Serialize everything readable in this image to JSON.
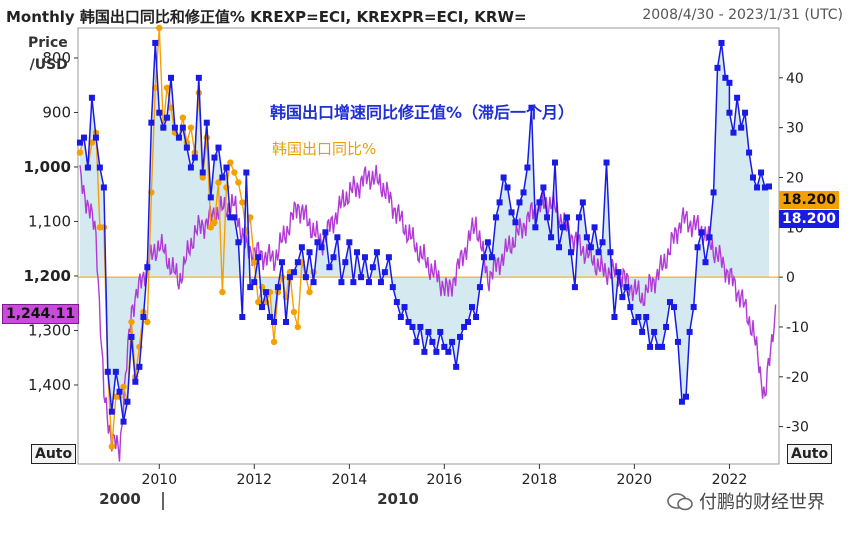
{
  "header": {
    "title": "Monthly 韩国出口同比和修正值% KREXP=ECI, KREXPR=ECI, KRW=",
    "date_range": "2008/4/30 - 2023/1/31 (UTC)"
  },
  "left_axis_label": [
    "Price",
    "/USD"
  ],
  "buttons": {
    "auto_left": "Auto",
    "auto_right": "Auto"
  },
  "value_tags": {
    "krw": "1,244.11",
    "krexpr": "18.200",
    "krexp": "18.200"
  },
  "legend": {
    "krexp": "韩国出口增速同比修正值%（滞后一个月）",
    "krexpr": "韩国出口同比%"
  },
  "watermark": "付鹏的财经世界",
  "colors": {
    "krexp": "#1a1ae6",
    "krexpr": "#f5a000",
    "krw": "#b13ad6",
    "fill": "#cfe8ee",
    "zero_line": "#f5a000"
  },
  "chart_data": {
    "type": "line",
    "title": "Monthly 韩国出口同比和修正值% KREXP=ECI, KREXPR=ECI, KRW=",
    "x_tick_labels": [
      "2010",
      "2012",
      "2014",
      "2016",
      "2018",
      "2020",
      "2022"
    ],
    "x_secondary_labels": [
      "2000",
      "2010"
    ],
    "x_range": [
      "2008-04-30",
      "2023-01-31"
    ],
    "y_left": {
      "label": "Price /USD",
      "inverted": true,
      "ticks": [
        800,
        900,
        1000,
        1100,
        1200,
        1300,
        1400
      ],
      "tick_labels": [
        "800",
        "900",
        "1,000",
        "1,100",
        "1,200",
        "1,300",
        "1,400"
      ],
      "range": [
        745,
        1545
      ]
    },
    "y_right": {
      "ticks": [
        40,
        30,
        20,
        10,
        0,
        -10,
        -20,
        -30
      ],
      "tick_labels": [
        "40",
        "30",
        "20",
        "10",
        "0",
        "-10",
        "-20",
        "-30"
      ],
      "range": [
        -37.5,
        50
      ]
    },
    "series": [
      {
        "name": "韩国出口增速同比修正值%（滞后一个月）",
        "axis": "right",
        "style": "line+square-markers+fill",
        "points": [
          [
            "2008-05",
            27
          ],
          [
            "2008-06",
            28
          ],
          [
            "2008-07",
            22
          ],
          [
            "2008-08",
            36
          ],
          [
            "2008-09",
            28
          ],
          [
            "2008-10",
            22
          ],
          [
            "2008-11",
            18
          ],
          [
            "2008-12",
            -19
          ],
          [
            "2009-01",
            -27
          ],
          [
            "2009-02",
            -19
          ],
          [
            "2009-03",
            -23
          ],
          [
            "2009-04",
            -29
          ],
          [
            "2009-05",
            -25
          ],
          [
            "2009-06",
            -12
          ],
          [
            "2009-07",
            -21
          ],
          [
            "2009-08",
            -18
          ],
          [
            "2009-09",
            -8
          ],
          [
            "2009-10",
            2
          ],
          [
            "2009-11",
            31
          ],
          [
            "2009-12",
            47
          ],
          [
            "2010-01",
            33
          ],
          [
            "2010-02",
            30
          ],
          [
            "2010-03",
            32
          ],
          [
            "2010-04",
            40
          ],
          [
            "2010-05",
            30
          ],
          [
            "2010-06",
            28
          ],
          [
            "2010-07",
            30
          ],
          [
            "2010-08",
            26
          ],
          [
            "2010-09",
            22
          ],
          [
            "2010-10",
            24
          ],
          [
            "2010-11",
            40
          ],
          [
            "2010-12",
            21
          ],
          [
            "2011-01",
            31
          ],
          [
            "2011-02",
            16
          ],
          [
            "2011-03",
            24
          ],
          [
            "2011-04",
            26
          ],
          [
            "2011-05",
            20
          ],
          [
            "2011-06",
            22
          ],
          [
            "2011-07",
            12
          ],
          [
            "2011-08",
            12
          ],
          [
            "2011-09",
            7
          ],
          [
            "2011-10",
            -8
          ],
          [
            "2011-11",
            21
          ],
          [
            "2011-12",
            -2
          ],
          [
            "2012-01",
            -1
          ],
          [
            "2012-02",
            4
          ],
          [
            "2012-03",
            -6
          ],
          [
            "2012-04",
            -3
          ],
          [
            "2012-05",
            -8
          ],
          [
            "2012-06",
            -9
          ],
          [
            "2012-07",
            -2
          ],
          [
            "2012-08",
            3
          ],
          [
            "2012-09",
            -9
          ],
          [
            "2012-10",
            0
          ],
          [
            "2012-11",
            1
          ],
          [
            "2012-12",
            3
          ],
          [
            "2013-01",
            6
          ],
          [
            "2013-02",
            0
          ],
          [
            "2013-03",
            5
          ],
          [
            "2013-04",
            -1
          ],
          [
            "2013-05",
            7
          ],
          [
            "2013-06",
            6
          ],
          [
            "2013-07",
            9
          ],
          [
            "2013-08",
            2
          ],
          [
            "2013-09",
            4
          ],
          [
            "2013-10",
            8
          ],
          [
            "2013-11",
            -1
          ],
          [
            "2013-12",
            3
          ],
          [
            "2014-01",
            7
          ],
          [
            "2014-02",
            -1
          ],
          [
            "2014-03",
            5
          ],
          [
            "2014-04",
            0
          ],
          [
            "2014-05",
            4
          ],
          [
            "2014-06",
            -1
          ],
          [
            "2014-07",
            2
          ],
          [
            "2014-08",
            5
          ],
          [
            "2014-09",
            -1
          ],
          [
            "2014-10",
            1
          ],
          [
            "2014-11",
            4
          ],
          [
            "2014-12",
            -2
          ],
          [
            "2015-01",
            -5
          ],
          [
            "2015-02",
            -8
          ],
          [
            "2015-03",
            -6
          ],
          [
            "2015-04",
            -9
          ],
          [
            "2015-05",
            -10
          ],
          [
            "2015-06",
            -13
          ],
          [
            "2015-07",
            -10
          ],
          [
            "2015-08",
            -15
          ],
          [
            "2015-09",
            -11
          ],
          [
            "2015-10",
            -13
          ],
          [
            "2015-11",
            -15
          ],
          [
            "2015-12",
            -11
          ],
          [
            "2016-01",
            -14
          ],
          [
            "2016-02",
            -15
          ],
          [
            "2016-03",
            -13
          ],
          [
            "2016-04",
            -18
          ],
          [
            "2016-05",
            -12
          ],
          [
            "2016-06",
            -10
          ],
          [
            "2016-07",
            -9
          ],
          [
            "2016-08",
            -6
          ],
          [
            "2016-09",
            -8
          ],
          [
            "2016-10",
            -2
          ],
          [
            "2016-11",
            4
          ],
          [
            "2016-12",
            7
          ],
          [
            "2017-01",
            4
          ],
          [
            "2017-02",
            12
          ],
          [
            "2017-03",
            15
          ],
          [
            "2017-04",
            20
          ],
          [
            "2017-05",
            18
          ],
          [
            "2017-06",
            13
          ],
          [
            "2017-07",
            11
          ],
          [
            "2017-08",
            15
          ],
          [
            "2017-09",
            17
          ],
          [
            "2017-10",
            22
          ],
          [
            "2017-11",
            34
          ],
          [
            "2017-12",
            10
          ],
          [
            "2018-01",
            15
          ],
          [
            "2018-02",
            18
          ],
          [
            "2018-03",
            12
          ],
          [
            "2018-04",
            8
          ],
          [
            "2018-05",
            23
          ],
          [
            "2018-06",
            6
          ],
          [
            "2018-07",
            10
          ],
          [
            "2018-08",
            12
          ],
          [
            "2018-09",
            5
          ],
          [
            "2018-10",
            -2
          ],
          [
            "2018-11",
            12
          ],
          [
            "2018-12",
            15
          ],
          [
            "2019-01",
            8
          ],
          [
            "2019-02",
            6
          ],
          [
            "2019-03",
            10
          ],
          [
            "2019-04",
            5
          ],
          [
            "2019-05",
            7
          ],
          [
            "2019-06",
            23
          ],
          [
            "2019-07",
            5
          ],
          [
            "2019-08",
            -8
          ],
          [
            "2019-09",
            1
          ],
          [
            "2019-10",
            -4
          ],
          [
            "2019-11",
            -2
          ],
          [
            "2019-12",
            -6
          ],
          [
            "2020-01",
            -9
          ],
          [
            "2020-02",
            -8
          ],
          [
            "2020-03",
            -11
          ],
          [
            "2020-04",
            -8
          ],
          [
            "2020-05",
            -14
          ],
          [
            "2020-06",
            -11
          ],
          [
            "2020-07",
            -14
          ],
          [
            "2020-08",
            -14
          ],
          [
            "2020-09",
            -10
          ],
          [
            "2020-10",
            -5
          ],
          [
            "2020-11",
            -6
          ],
          [
            "2020-12",
            -13
          ],
          [
            "2021-01",
            -25
          ],
          [
            "2021-02",
            -24
          ],
          [
            "2021-03",
            -11
          ],
          [
            "2021-04",
            -6
          ],
          [
            "2021-05",
            6
          ],
          [
            "2021-06",
            9
          ],
          [
            "2021-07",
            3
          ],
          [
            "2021-08",
            8
          ],
          [
            "2021-09",
            17
          ],
          [
            "2021-10",
            42
          ],
          [
            "2021-11",
            47
          ],
          [
            "2021-12",
            40
          ],
          [
            "2021-13",
            39
          ],
          [
            "2022-01",
            33
          ],
          [
            "2022-02",
            29
          ],
          [
            "2022-03",
            36
          ],
          [
            "2022-04",
            30
          ],
          [
            "2022-05",
            33
          ],
          [
            "2022-06",
            25
          ],
          [
            "2022-07",
            20
          ],
          [
            "2022-08",
            18
          ],
          [
            "2022-09",
            21
          ],
          [
            "2022-10",
            18
          ],
          [
            "2022-11",
            18.2
          ]
        ]
      },
      {
        "name": "韩国出口同比%",
        "axis": "right",
        "style": "line+circle-markers",
        "points": [
          [
            "2008-05",
            25
          ],
          [
            "2008-06",
            28
          ],
          [
            "2008-07",
            22
          ],
          [
            "2008-08",
            27
          ],
          [
            "2008-09",
            29
          ],
          [
            "2008-10",
            10
          ],
          [
            "2008-11",
            10
          ],
          [
            "2008-12",
            -19
          ],
          [
            "2009-01",
            -34
          ],
          [
            "2009-02",
            -24
          ],
          [
            "2009-03",
            -24
          ],
          [
            "2009-04",
            -22
          ],
          [
            "2009-05",
            -25
          ],
          [
            "2009-06",
            -9
          ],
          [
            "2009-07",
            -20
          ],
          [
            "2009-08",
            -14
          ],
          [
            "2009-09",
            -7
          ],
          [
            "2009-10",
            -9
          ],
          [
            "2009-11",
            17
          ],
          [
            "2009-12",
            38
          ],
          [
            "2010-01",
            50
          ],
          [
            "2010-02",
            30
          ],
          [
            "2010-03",
            38
          ],
          [
            "2010-04",
            34
          ],
          [
            "2010-05",
            29
          ],
          [
            "2010-06",
            28
          ],
          [
            "2010-07",
            32
          ],
          [
            "2010-08",
            27
          ],
          [
            "2010-09",
            30
          ],
          [
            "2010-10",
            25
          ],
          [
            "2010-11",
            37
          ],
          [
            "2010-12",
            20
          ],
          [
            "2011-01",
            28
          ],
          [
            "2011-02",
            10
          ],
          [
            "2011-03",
            11
          ],
          [
            "2011-04",
            19
          ],
          [
            "2011-05",
            -3
          ],
          [
            "2011-06",
            18
          ],
          [
            "2011-07",
            23
          ],
          [
            "2011-08",
            21
          ],
          [
            "2011-09",
            19
          ],
          [
            "2011-10",
            15
          ],
          [
            "2011-11",
            9
          ],
          [
            "2011-12",
            12
          ],
          [
            "2012-01",
            3
          ],
          [
            "2012-02",
            -5
          ],
          [
            "2012-03",
            -2
          ],
          [
            "2012-04",
            -5
          ],
          [
            "2012-05",
            -3
          ],
          [
            "2012-06",
            -13
          ],
          [
            "2012-07",
            -3
          ],
          [
            "2012-08",
            0
          ],
          [
            "2012-09",
            -4
          ],
          [
            "2012-10",
            1
          ],
          [
            "2012-11",
            -7
          ],
          [
            "2012-12",
            -10
          ],
          [
            "2013-01",
            3
          ],
          [
            "2013-02",
            0
          ],
          [
            "2013-03",
            -3
          ],
          [
            "2013-04",
            1
          ]
        ]
      },
      {
        "name": "KRW=",
        "axis": "left",
        "style": "line",
        "last_value": 1244.11
      }
    ]
  }
}
